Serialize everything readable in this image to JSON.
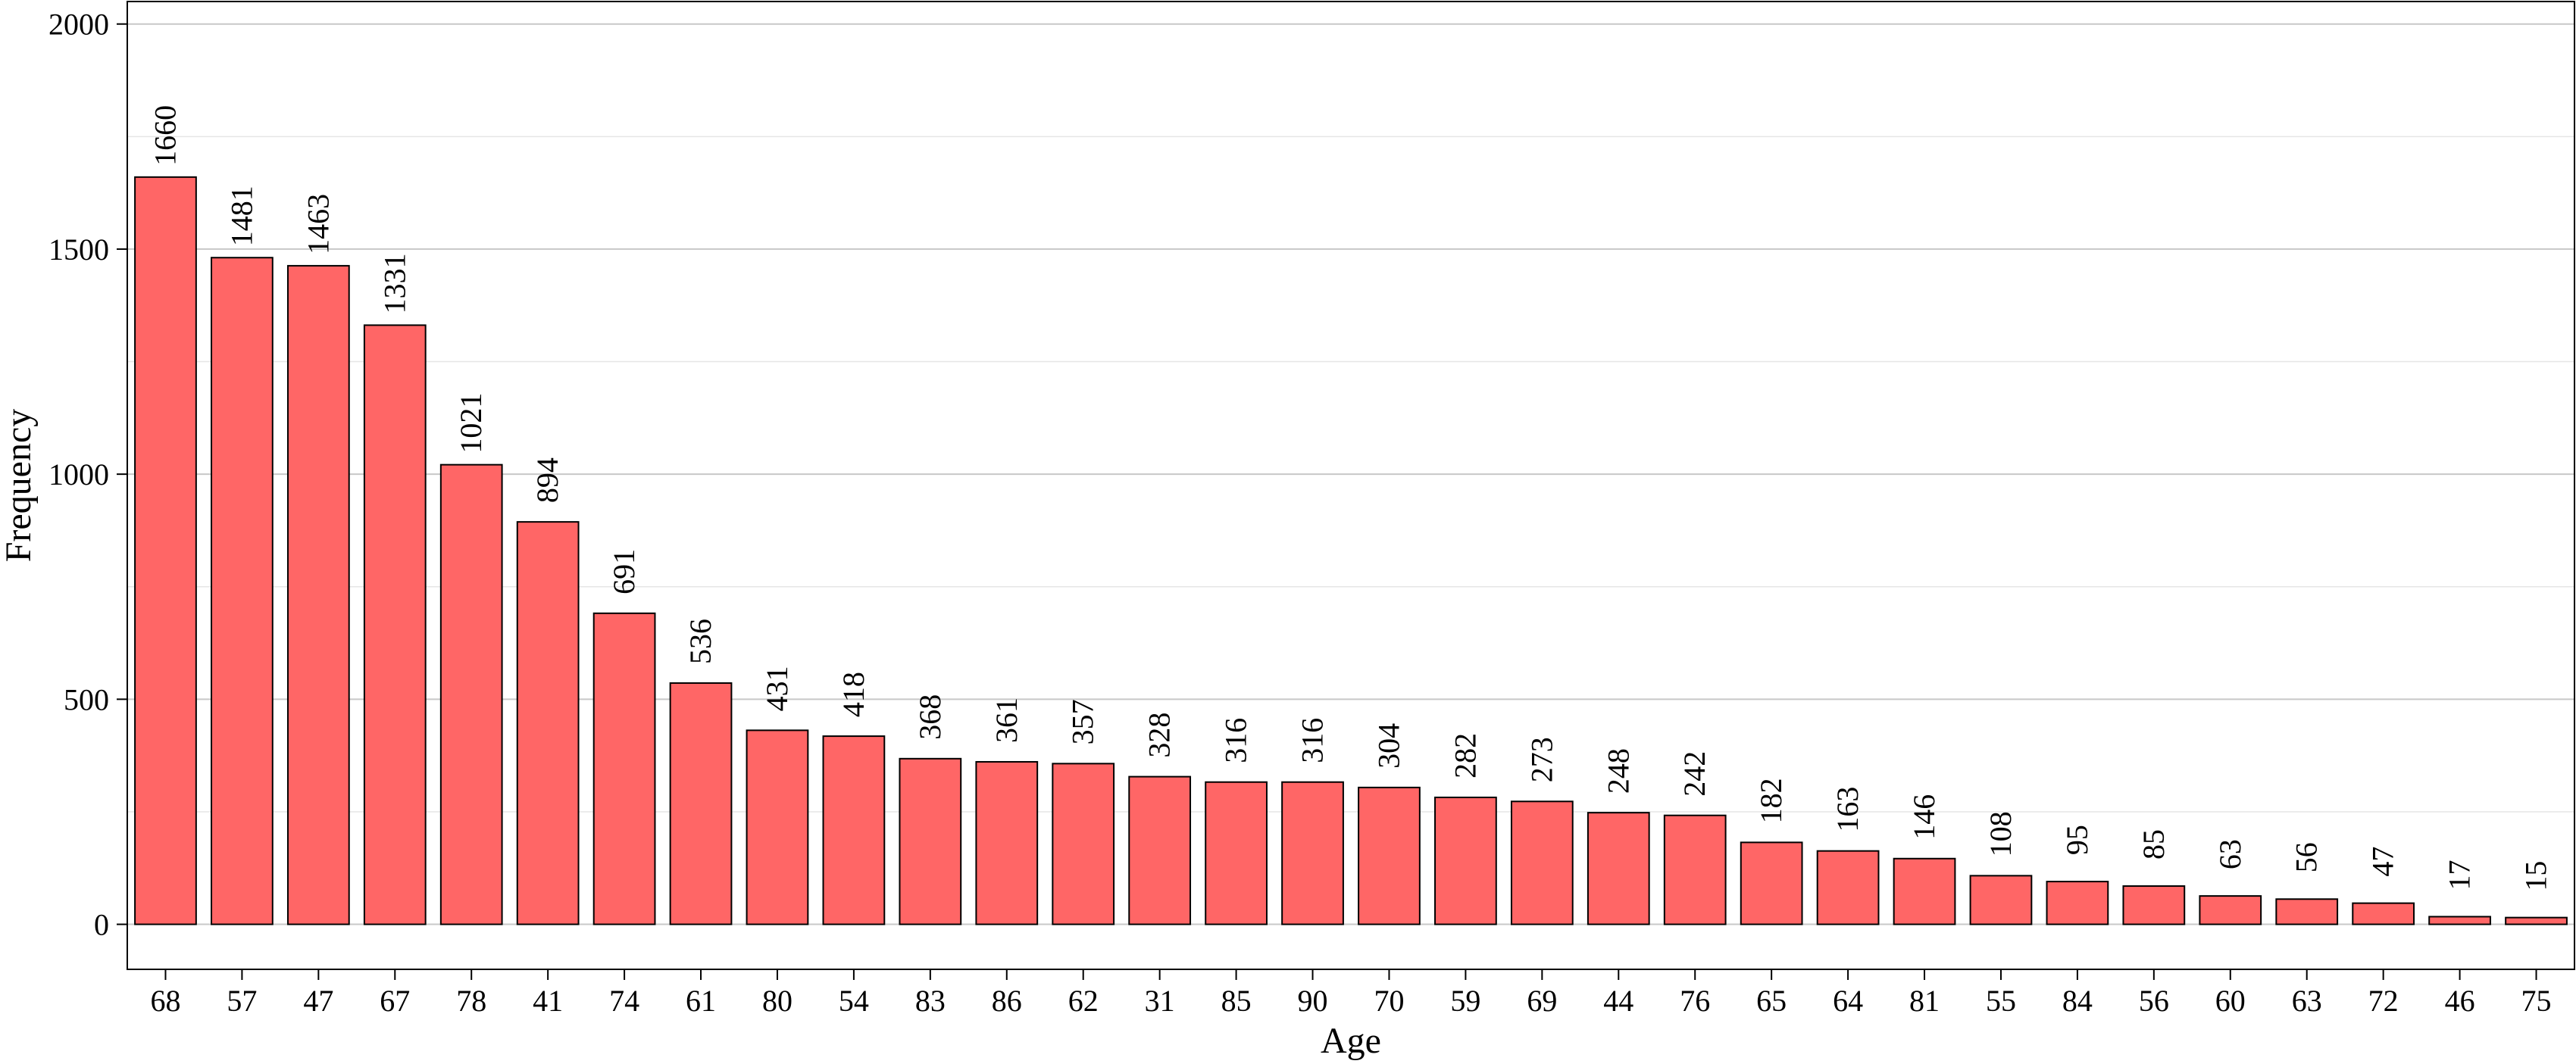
{
  "chart_data": {
    "type": "bar",
    "xlabel": "Age",
    "ylabel": "Frequency",
    "ylim": [
      -100,
      2050
    ],
    "yticks": [
      0,
      500,
      1000,
      1500,
      2000
    ],
    "grid": {
      "major_y": true,
      "minor_y": true
    },
    "bar_color": "#FF6666",
    "bar_edge_color": "#000000",
    "categories": [
      "68",
      "57",
      "47",
      "67",
      "78",
      "41",
      "74",
      "61",
      "80",
      "54",
      "83",
      "86",
      "62",
      "31",
      "85",
      "90",
      "70",
      "59",
      "69",
      "44",
      "76",
      "65",
      "64",
      "81",
      "55",
      "84",
      "56",
      "60",
      "63",
      "72",
      "46",
      "75"
    ],
    "values": [
      1660,
      1481,
      1463,
      1331,
      1021,
      894,
      691,
      536,
      431,
      418,
      368,
      361,
      357,
      328,
      316,
      316,
      304,
      282,
      273,
      248,
      242,
      182,
      163,
      146,
      108,
      95,
      85,
      63,
      56,
      47,
      17,
      15
    ],
    "data_labels": [
      "1660",
      "1481",
      "1463",
      "1331",
      "1021",
      "894",
      "691",
      "536",
      "431",
      "418",
      "368",
      "361",
      "357",
      "328",
      "316",
      "316",
      "304",
      "282",
      "273",
      "248",
      "242",
      "182",
      "163",
      "146",
      "108",
      "95",
      "85",
      "63",
      "56",
      "47",
      "17",
      "15"
    ]
  }
}
